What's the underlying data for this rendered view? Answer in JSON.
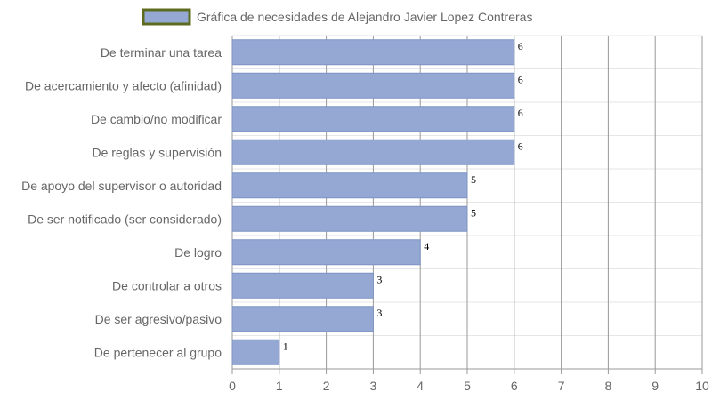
{
  "chart_data": {
    "type": "bar",
    "orientation": "horizontal",
    "series": [
      {
        "name": "Gráfica de necesidades de Alejandro Javier Lopez Contreras",
        "values": [
          6,
          6,
          6,
          6,
          5,
          5,
          4,
          3,
          3,
          1
        ]
      }
    ],
    "categories": [
      "De terminar una tarea",
      "De acercamiento y afecto (afinidad)",
      "De cambio/no modificar",
      "De reglas y supervisión",
      "De apoyo del supervisor o autoridad",
      "De ser notificado (ser considerado)",
      "De logro",
      "De controlar a otros",
      "De ser agresivo/pasivo",
      "De pertenecer al grupo"
    ],
    "value_labels": [
      "6",
      "6",
      "6",
      "6",
      "5",
      "5",
      "4",
      "3",
      "3",
      "1"
    ],
    "x_ticks": [
      "0",
      "1",
      "2",
      "3",
      "4",
      "5",
      "6",
      "7",
      "8",
      "9",
      "10"
    ],
    "xlim": [
      0,
      10
    ],
    "grid": true,
    "legend_position": "top",
    "colors": {
      "bar_fill": "#95a8d4",
      "bar_stroke": "#7f93c4",
      "legend_box_fill": "#95a8d4",
      "legend_box_stroke": "#5c6b1f",
      "grid_major": "#999999",
      "grid_minor": "#e6e6e6",
      "text": "#666666"
    }
  }
}
